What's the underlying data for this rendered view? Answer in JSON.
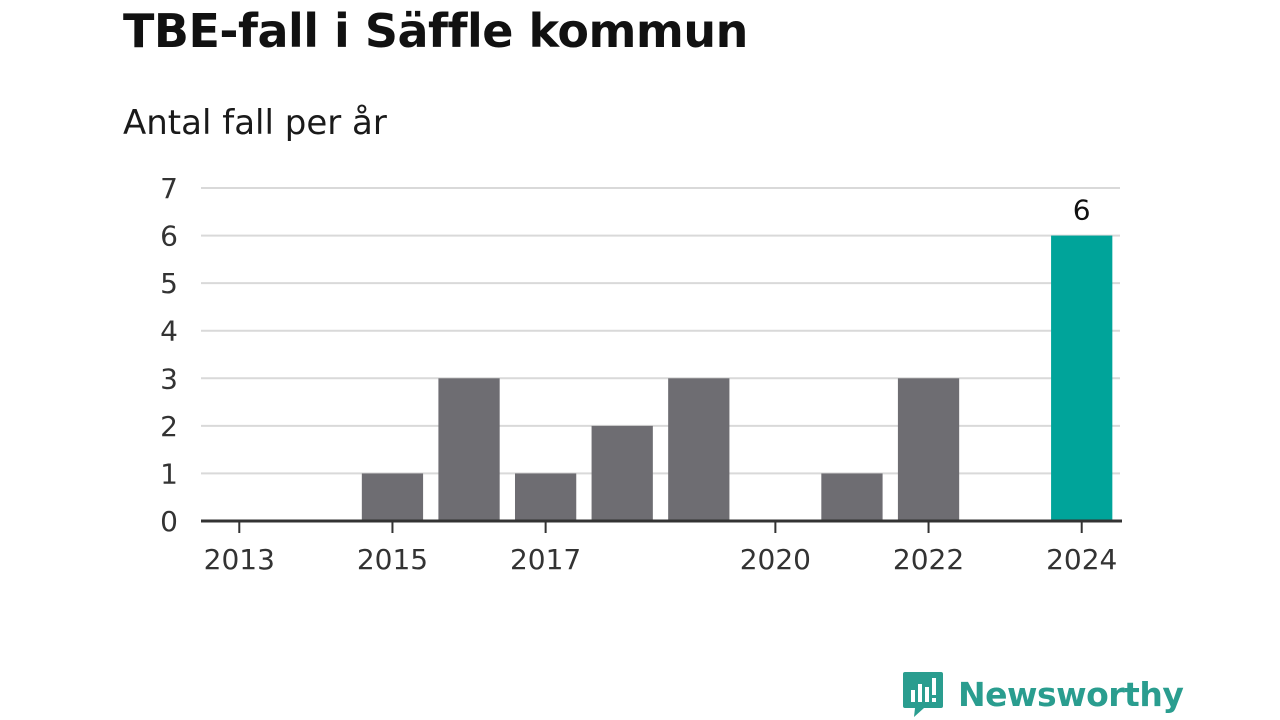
{
  "chart_data": {
    "type": "bar",
    "title": "TBE-fall i Säffle kommun",
    "subtitle": "Antal fall per år",
    "categories": [
      "2013",
      "2014",
      "2015",
      "2016",
      "2017",
      "2018",
      "2019",
      "2020",
      "2021",
      "2022",
      "2023",
      "2024"
    ],
    "values": [
      0,
      0,
      1,
      3,
      1,
      2,
      3,
      0,
      1,
      3,
      0,
      6
    ],
    "x_tick_labels": [
      "2013",
      "2015",
      "2017",
      "2020",
      "2022",
      "2024"
    ],
    "y_ticks": [
      0,
      1,
      2,
      3,
      4,
      5,
      6,
      7
    ],
    "ylim": [
      0,
      7
    ],
    "grid": true,
    "data_labels": [
      {
        "category": "2024",
        "text": "6"
      }
    ],
    "colors": {
      "bar": "#6e6d72",
      "highlight": "#00a49a",
      "grid": "#d9d9d9",
      "axis": "#333333"
    },
    "highlight_category": "2024"
  },
  "branding": {
    "logo_text": "Newsworthy",
    "logo_icon": "bar-chart-speech-bubble-icon",
    "color": "#2a9d8f"
  }
}
